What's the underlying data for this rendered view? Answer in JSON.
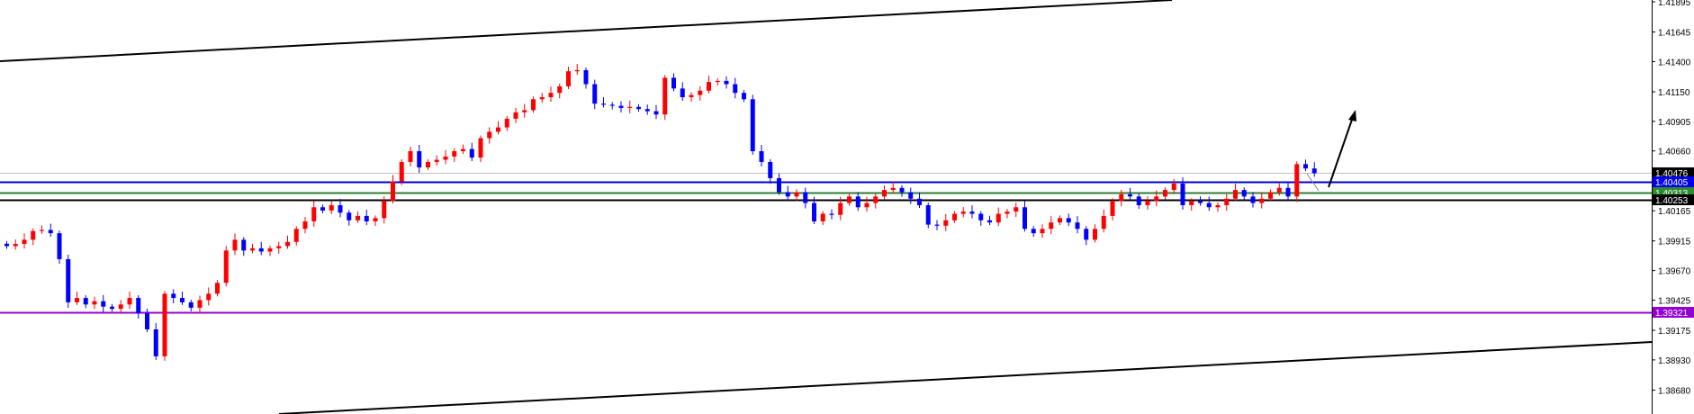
{
  "chart_data": {
    "type": "candlestick",
    "title": "",
    "xlabel": "",
    "ylabel": "",
    "ylim": [
      1.3855,
      1.41905
    ],
    "grid": false,
    "colors": {
      "up": "#ff0000",
      "down": "#0000ff",
      "background": "#ffffff",
      "axis": "#000000"
    },
    "yticks": [
      "1.41895",
      "1.41645",
      "1.41400",
      "1.41150",
      "1.40905",
      "1.40660",
      "1.40165",
      "1.39915",
      "1.39670",
      "1.39425",
      "1.39175",
      "1.38930",
      "1.38680"
    ],
    "close": [
      1.39872,
      1.3989,
      1.39925,
      1.39997,
      1.40006,
      1.39979,
      1.39764,
      1.39407,
      1.39443,
      1.39389,
      1.39416,
      1.39371,
      1.39353,
      1.39389,
      1.39443,
      1.39317,
      1.39183,
      1.3896,
      1.39478,
      1.39443,
      1.39407,
      1.39362,
      1.39425,
      1.39478,
      1.39568,
      1.39836,
      1.39925,
      1.39836,
      1.39854,
      1.39827,
      1.39854,
      1.39872,
      1.39907,
      1.40015,
      1.40077,
      1.40194,
      1.40167,
      1.40211,
      1.40149,
      1.40086,
      1.40122,
      1.40077,
      1.40104,
      1.40247,
      1.40408,
      1.40569,
      1.40658,
      1.40524,
      1.40569,
      1.40587,
      1.40614,
      1.40658,
      1.40676,
      1.40605,
      1.40766,
      1.40819,
      1.40855,
      1.40927,
      1.4098,
      1.40998,
      1.41088,
      1.41105,
      1.41141,
      1.41195,
      1.4132,
      1.41329,
      1.41213,
      1.41052,
      1.41043,
      1.41034,
      1.41016,
      1.41025,
      1.41007,
      1.40989,
      1.40962,
      1.41266,
      1.41177,
      1.41105,
      1.41123,
      1.41159,
      1.41231,
      1.4124,
      1.41213,
      1.41141,
      1.41088,
      1.40658,
      1.40569,
      1.40435,
      1.40319,
      1.40283,
      1.40319,
      1.40229,
      1.40077,
      1.4014,
      1.40131,
      1.40229,
      1.40283,
      1.40194,
      1.40229,
      1.40283,
      1.40337,
      1.40354,
      1.40319,
      1.40265,
      1.40211,
      1.4005,
      1.40041,
      1.40086,
      1.4014,
      1.40158,
      1.4014,
      1.40086,
      1.40068,
      1.4014,
      1.40158,
      1.40194,
      1.40015,
      1.39979,
      1.40015,
      1.40068,
      1.40104,
      1.40068,
      1.40015,
      1.39925,
      1.40015,
      1.40122,
      1.40247,
      1.40301,
      1.40283,
      1.40211,
      1.40247,
      1.40283,
      1.40337,
      1.4039,
      1.40211,
      1.40247,
      1.40229,
      1.40194,
      1.40211,
      1.40265,
      1.40337,
      1.40283,
      1.40229,
      1.40265,
      1.40319,
      1.40354,
      1.40283,
      1.40551,
      1.40515,
      1.40476
    ],
    "levels": [
      {
        "price": "1.40476",
        "color": "#c0c0c0",
        "label_bg": "#000000"
      },
      {
        "price": "1.40405",
        "color": "#0000cc",
        "label_bg": "#0000ee"
      },
      {
        "price": "1.40313",
        "color": "#2e7d32",
        "label_bg": "#2e8b2e"
      },
      {
        "price": "1.40253",
        "color": "#000000",
        "label_bg": "#000000"
      },
      {
        "price": "1.39321",
        "color": "#9400d3",
        "label_bg": "#9400d3"
      }
    ],
    "annotations": [
      {
        "type": "trendline",
        "name": "upper-channel-line",
        "color": "#000000"
      },
      {
        "type": "trendline",
        "name": "lower-channel-line",
        "color": "#000000"
      },
      {
        "type": "arrow",
        "name": "up-arrow",
        "direction": "up",
        "color": "#000000"
      }
    ]
  }
}
